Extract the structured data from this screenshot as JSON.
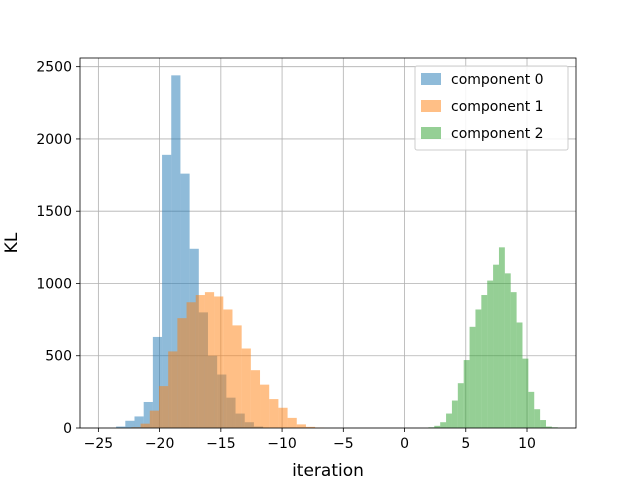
{
  "chart_data": {
    "type": "bar",
    "subtype": "histogram",
    "title": "",
    "xlabel": "iteration",
    "ylabel": "KL",
    "xlim": [
      -26.5,
      14
    ],
    "ylim": [
      0,
      2560
    ],
    "xticks": [
      -25,
      -20,
      -15,
      -10,
      -5,
      0,
      5,
      10
    ],
    "yticks": [
      0,
      500,
      1000,
      1500,
      2000,
      2500
    ],
    "grid": true,
    "legend": "top-right",
    "series": [
      {
        "name": "component 0",
        "color": "#1f77b4",
        "alpha": 0.5,
        "bin_start": -23.55,
        "bin_width": 0.75,
        "counts": [
          10,
          50,
          80,
          180,
          630,
          1890,
          2440,
          1760,
          1240,
          800,
          500,
          370,
          210,
          100,
          40,
          10
        ]
      },
      {
        "name": "component 1",
        "color": "#ff7f0e",
        "alpha": 0.5,
        "bin_start": -22.3,
        "bin_width": 0.75,
        "counts": [
          5,
          30,
          120,
          290,
          530,
          760,
          870,
          920,
          940,
          910,
          820,
          710,
          550,
          400,
          300,
          200,
          140,
          70,
          25,
          8,
          3
        ]
      },
      {
        "name": "component 2",
        "color": "#2ca02c",
        "alpha": 0.5,
        "bin_start": 1.95,
        "bin_width": 0.48,
        "counts": [
          5,
          15,
          40,
          100,
          190,
          310,
          470,
          700,
          820,
          920,
          1020,
          1130,
          1250,
          1070,
          940,
          730,
          480,
          250,
          130,
          55,
          10,
          5
        ]
      }
    ]
  }
}
